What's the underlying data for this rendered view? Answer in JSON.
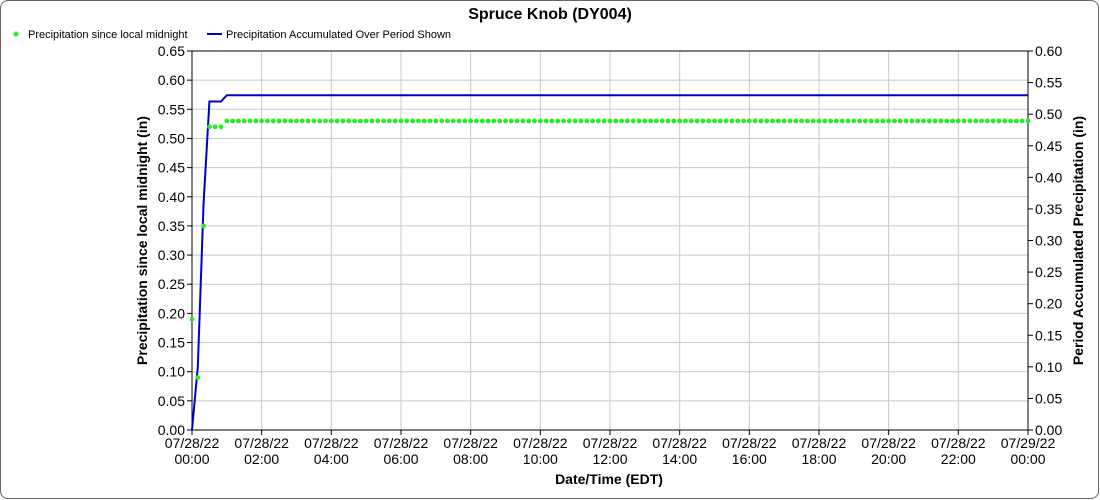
{
  "chart_data": {
    "type": "line",
    "title": "Spruce Knob (DY004)",
    "xlabel": "Date/Time (EDT)",
    "ylabel_left": "Precipitation since local midnight (in)",
    "ylabel_right": "Period Accumulated Precipitation (in)",
    "x_ticks": [
      {
        "date": "07/28/22",
        "time": "00:00",
        "hour": 0
      },
      {
        "date": "07/28/22",
        "time": "02:00",
        "hour": 2
      },
      {
        "date": "07/28/22",
        "time": "04:00",
        "hour": 4
      },
      {
        "date": "07/28/22",
        "time": "06:00",
        "hour": 6
      },
      {
        "date": "07/28/22",
        "time": "08:00",
        "hour": 8
      },
      {
        "date": "07/28/22",
        "time": "10:00",
        "hour": 10
      },
      {
        "date": "07/28/22",
        "time": "12:00",
        "hour": 12
      },
      {
        "date": "07/28/22",
        "time": "14:00",
        "hour": 14
      },
      {
        "date": "07/28/22",
        "time": "16:00",
        "hour": 16
      },
      {
        "date": "07/28/22",
        "time": "18:00",
        "hour": 18
      },
      {
        "date": "07/28/22",
        "time": "20:00",
        "hour": 20
      },
      {
        "date": "07/28/22",
        "time": "22:00",
        "hour": 22
      },
      {
        "date": "07/29/22",
        "time": "00:00",
        "hour": 24
      }
    ],
    "xlim_hours": [
      0,
      24
    ],
    "ylim_left": [
      0,
      0.65
    ],
    "yticks_left": [
      "0.00",
      "0.05",
      "0.10",
      "0.15",
      "0.20",
      "0.25",
      "0.30",
      "0.35",
      "0.40",
      "0.45",
      "0.50",
      "0.55",
      "0.60",
      "0.65"
    ],
    "ylim_right": [
      0,
      0.6
    ],
    "yticks_right": [
      "0.00",
      "0.05",
      "0.10",
      "0.15",
      "0.20",
      "0.25",
      "0.30",
      "0.35",
      "0.40",
      "0.45",
      "0.50",
      "0.55",
      "0.60"
    ],
    "grid": true,
    "legend_position": "top-left",
    "series": [
      {
        "name": "Precipitation since local midnight",
        "type": "scatter",
        "axis": "left",
        "color": "#22ee22",
        "interval_minutes": 10,
        "points": [
          {
            "hour": 0.0,
            "value": 0.19
          },
          {
            "hour": 0.1667,
            "value": 0.09
          },
          {
            "hour": 0.3333,
            "value": 0.35
          },
          {
            "hour": 0.5,
            "value": 0.52
          },
          {
            "hour": 0.6667,
            "value": 0.52
          },
          {
            "hour": 0.8333,
            "value": 0.52
          }
        ],
        "steady_from_hour": 1.0,
        "steady_value": 0.53
      },
      {
        "name": "Precipitation Accumulated Over Period Shown",
        "type": "line",
        "axis": "right",
        "color": "#0000cc",
        "points": [
          {
            "hour": 0.0,
            "value": 0.0
          },
          {
            "hour": 0.1667,
            "value": 0.1
          },
          {
            "hour": 0.3333,
            "value": 0.36
          },
          {
            "hour": 0.5,
            "value": 0.52
          },
          {
            "hour": 0.8333,
            "value": 0.52
          },
          {
            "hour": 1.0,
            "value": 0.53
          },
          {
            "hour": 24.0,
            "value": 0.53
          }
        ]
      }
    ]
  }
}
